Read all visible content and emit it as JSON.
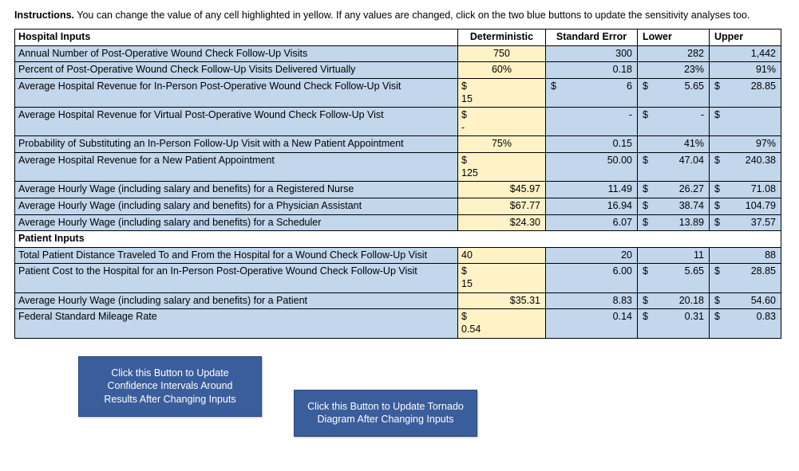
{
  "instructions_label": "Instructions.",
  "instructions_text": " You can change the value of any cell highlighted in yellow. If any values are changed, click on the two blue buttons to update the sensitivity analyses too.",
  "headers": {
    "label": "Hospital Inputs",
    "det": "Deterministic",
    "se": "Standard Error",
    "low": "Lower",
    "up": "Upper"
  },
  "patient_header": "Patient Inputs",
  "rows": {
    "r1": {
      "label": "Annual Number of Post-Operative Wound Check Follow-Up Visits",
      "det": "750",
      "se": "300",
      "low": "282",
      "up": "1,442"
    },
    "r2": {
      "label": "Percent of Post-Operative Wound Check Follow-Up Visits Delivered Virtually",
      "det": "60%",
      "se": "0.18",
      "low": "23%",
      "up": "91%"
    },
    "r3": {
      "label": "Average Hospital Revenue for In-Person Post-Operative Wound Check Follow-Up Visit",
      "det_sym": "$",
      "det_val": "15",
      "se_sym": "$",
      "se_val": "6",
      "low_sym": "$",
      "low_val": "5.65",
      "up_sym": "$",
      "up_val": "28.85"
    },
    "r4": {
      "label": "Average Hospital Revenue for Virtual Post-Operative Wound Check Follow-Up Vist",
      "det_sym": "$",
      "det_val": "-",
      "se_val": "-",
      "low_sym": "$",
      "low_val": "-",
      "up_sym": "$",
      "up_val": ""
    },
    "r5": {
      "label": "Probability of Substituting an In-Person Follow-Up Visit with a New Patient Appointment",
      "det": "75%",
      "se": "0.15",
      "low": "41%",
      "up": "97%"
    },
    "r6": {
      "label": "Average Hospital Revenue for a New Patient Appointment",
      "det_sym": "$",
      "det_val": "125",
      "se": "50.00",
      "low_sym": "$",
      "low_val": "47.04",
      "up_sym": "$",
      "up_val": "240.38"
    },
    "r7": {
      "label": "Average Hourly Wage (including salary and benefits) for a Registered Nurse",
      "det": "$45.97",
      "se": "11.49",
      "low_sym": "$",
      "low_val": "26.27",
      "up_sym": "$",
      "up_val": "71.08"
    },
    "r8": {
      "label": "Average Hourly Wage (including salary and benefits) for a Physician Assistant",
      "det": "$67.77",
      "se": "16.94",
      "low_sym": "$",
      "low_val": "38.74",
      "up_sym": "$",
      "up_val": "104.79"
    },
    "r9": {
      "label": "Average Hourly Wage (including salary and benefits) for a Scheduler",
      "det": "$24.30",
      "se": "6.07",
      "low_sym": "$",
      "low_val": "13.89",
      "up_sym": "$",
      "up_val": "37.57"
    },
    "r10": {
      "label": "Total Patient Distance Traveled To and From the Hospital for a Wound Check Follow-Up Visit",
      "det": "40",
      "se": "20",
      "low": "11",
      "up": "88"
    },
    "r11": {
      "label": "Patient Cost to the Hospital for an In-Person Post-Operative Wound Check Follow-Up Visit",
      "det_sym": "$",
      "det_val": "15",
      "se": "6.00",
      "low_sym": "$",
      "low_val": "5.65",
      "up_sym": "$",
      "up_val": "28.85"
    },
    "r12": {
      "label": "Average Hourly Wage (including salary and benefits) for a Patient",
      "det": "$35.31",
      "se": "8.83",
      "low_sym": "$",
      "low_val": "20.18",
      "up_sym": "$",
      "up_val": "54.60"
    },
    "r13": {
      "label": "Federal Standard Mileage Rate",
      "det_sym": "$",
      "det_val": "0.54",
      "se": "0.14",
      "low_sym": "$",
      "low_val": "0.31",
      "up_sym": "$",
      "up_val": "0.83"
    }
  },
  "buttons": {
    "b1": "Click this Button to Update Confidence Intervals Around Results After Changing Inputs",
    "b2": "Click this Button to Update Tornado Diagram After Changing Inputs"
  },
  "colors": {
    "blue_row": "#c2d6ec",
    "yellow_cell": "#fff2c7",
    "button_bg": "#3a5d9c",
    "border": "#000000"
  }
}
